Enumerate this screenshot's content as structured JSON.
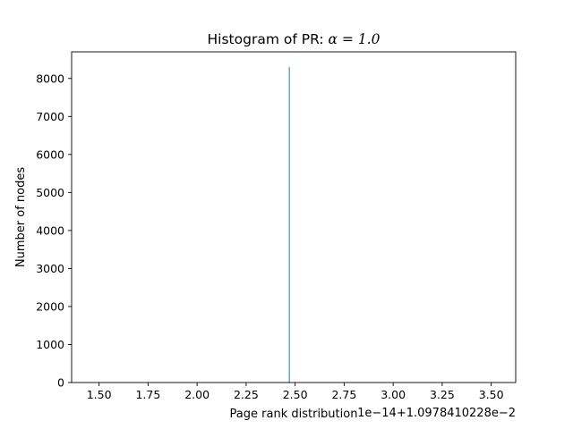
{
  "chart_data": {
    "type": "bar",
    "title": "Histogram of PR: α = 1.0",
    "title_prefix": "Histogram of PR: ",
    "title_math": "α = 1.0",
    "xlabel": "Page rank distribution",
    "ylabel": "Number of nodes",
    "x_offset_text": "1e−14+1.0978410228e−2",
    "xlim": [
      1.36,
      3.625
    ],
    "ylim": [
      0,
      8700
    ],
    "x_ticks": [
      1.5,
      1.75,
      2.0,
      2.25,
      2.5,
      2.75,
      3.0,
      3.25,
      3.5
    ],
    "x_tick_labels": [
      "1.50",
      "1.75",
      "2.00",
      "2.25",
      "2.50",
      "2.75",
      "3.00",
      "3.25",
      "3.50"
    ],
    "y_ticks": [
      0,
      1000,
      2000,
      3000,
      4000,
      5000,
      6000,
      7000,
      8000
    ],
    "y_tick_labels": [
      "0",
      "1000",
      "2000",
      "3000",
      "4000",
      "5000",
      "6000",
      "7000",
      "8000"
    ],
    "bars": [
      {
        "x": 2.47,
        "value": 8298
      }
    ],
    "grid": false,
    "bar_color": "#1f77b4"
  }
}
